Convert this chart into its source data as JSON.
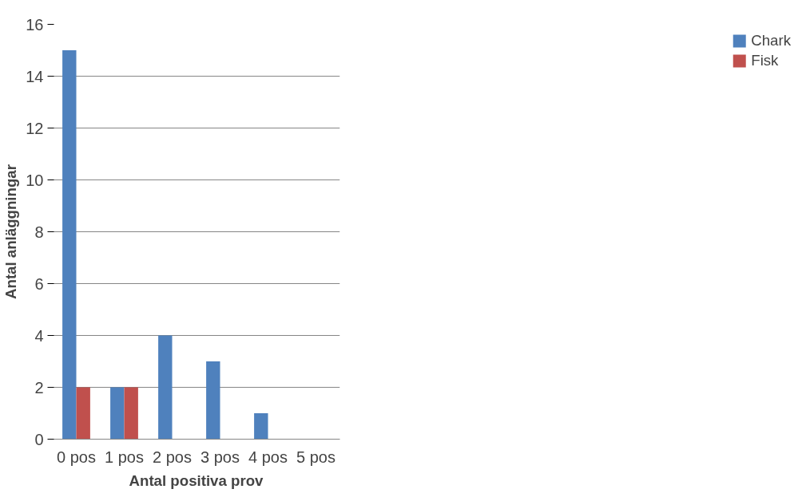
{
  "chart_data": {
    "type": "bar",
    "xlabel": "Antal positiva prov",
    "ylabel": "Antal anläggningar",
    "categories": [
      "0 pos",
      "1 pos",
      "2 pos",
      "3 pos",
      "4 pos",
      "5 pos"
    ],
    "series": [
      {
        "name": "Chark",
        "color": "#4f81bd",
        "values": [
          15,
          2,
          4,
          3,
          1,
          0
        ]
      },
      {
        "name": "Fisk",
        "color": "#c0504d",
        "values": [
          2,
          2,
          0,
          0,
          0,
          0
        ]
      }
    ],
    "ylim": [
      0,
      16
    ],
    "yticks": [
      0,
      2,
      4,
      6,
      8,
      10,
      12,
      14,
      16
    ],
    "grid": "y",
    "legend": "right"
  }
}
